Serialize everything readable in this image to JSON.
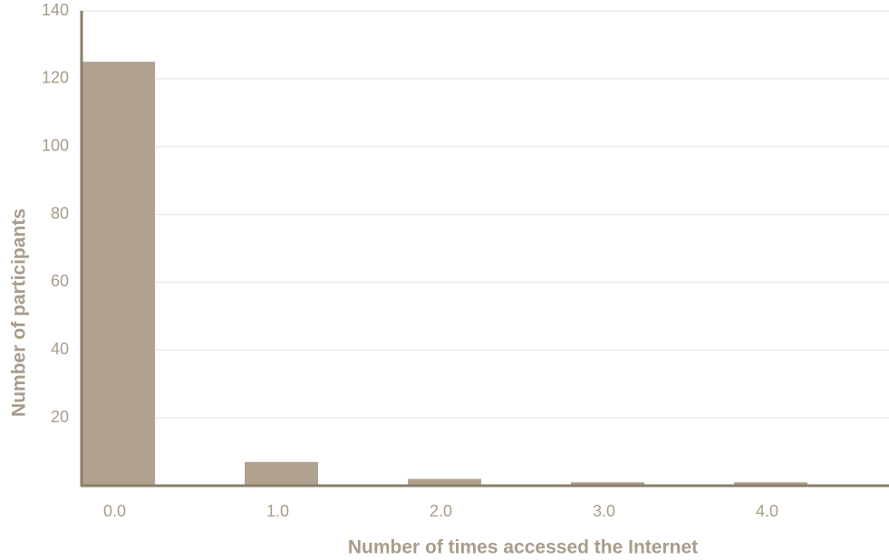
{
  "chart_data": {
    "type": "bar",
    "title": "",
    "xlabel": "Number of times accessed the Internet",
    "ylabel": "Number of participants",
    "categories": [
      "0.0",
      "1.0",
      "2.0",
      "3.0",
      "4.0"
    ],
    "values": [
      125,
      7,
      2,
      1,
      1
    ],
    "ylim": [
      0,
      140
    ],
    "yticks": [
      20,
      40,
      60,
      80,
      100,
      120,
      140
    ],
    "grid": true,
    "legend": "none",
    "colors": {
      "bar": "#b0a28e",
      "axis": "#8b7d68",
      "grid": "#ebebeb",
      "text": "#a89c8a"
    }
  }
}
